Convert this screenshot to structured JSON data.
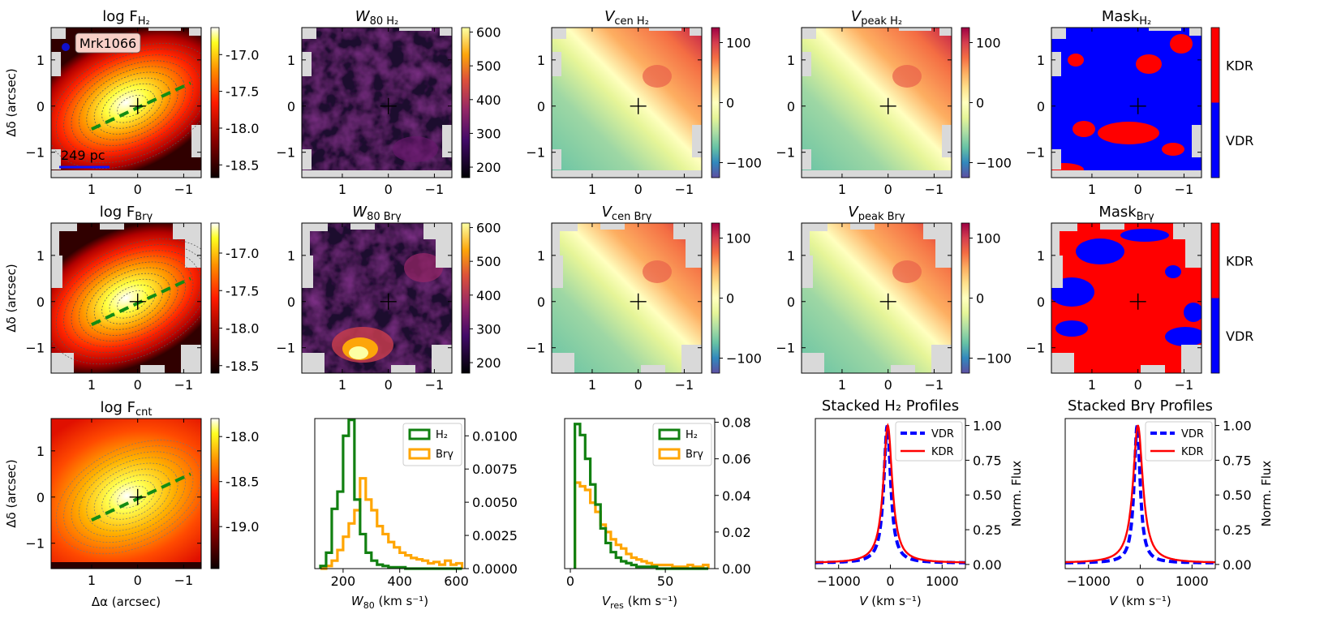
{
  "figure": {
    "colors": {
      "inferno": [
        "#000004",
        "#420a68",
        "#932667",
        "#dd513a",
        "#fca50a",
        "#fcffa4"
      ],
      "hot": [
        "#0b0000",
        "#8a0000",
        "#ff1a00",
        "#ff9000",
        "#ffff20",
        "#ffffff"
      ],
      "spectral": [
        "#5e4fa2",
        "#3288bd",
        "#66c2a5",
        "#abdda4",
        "#e6f598",
        "#ffffbf",
        "#fee08b",
        "#fdae61",
        "#f46d43",
        "#d53e4f",
        "#9e0142"
      ],
      "vdr": "#0000ff",
      "kdr": "#ff0000",
      "h2": "#118011",
      "brg": "#ffa500",
      "pa": "#148c14",
      "nodata": "#d9d9d9",
      "galaxy_dot": "#1010cc",
      "label_box": "#f8d0c8"
    },
    "annotations": {
      "galaxy": "Mrk1066",
      "scale_bar": "249 pc"
    },
    "axis_labels": {
      "dalpha": "Δα (arcsec)",
      "ddelta": "Δδ (arcsec)"
    },
    "map_ticks": {
      "x": [
        "1",
        "0",
        "−1"
      ],
      "y": [
        "1",
        "0",
        "−1"
      ]
    },
    "titles": {
      "f_h2": "log F",
      "f_h2_sub": "H₂",
      "w80_h2": "W",
      "w80_h2_sub": "80 H₂",
      "vcen_h2": "V",
      "vcen_h2_sub": "cen H₂",
      "vpeak_h2": "V",
      "vpeak_h2_sub": "peak H₂",
      "mask_h2": "Mask",
      "mask_h2_sub": "H₂",
      "f_brg": "log F",
      "f_brg_sub": "Brγ",
      "w80_brg": "W",
      "w80_brg_sub": "80 Brγ",
      "vcen_brg": "V",
      "vcen_brg_sub": "cen Brγ",
      "vpeak_brg": "V",
      "vpeak_brg_sub": "peak Brγ",
      "mask_brg": "Mask",
      "mask_brg_sub": "Brγ",
      "f_cnt": "log F",
      "f_cnt_sub": "cnt",
      "stack_h2": "Stacked H₂ Profiles",
      "stack_brg": "Stacked Brγ Profiles"
    },
    "colorbars": {
      "flux_line": [
        "-17.0",
        "-17.5",
        "-18.0",
        "-18.5"
      ],
      "flux_cnt": [
        "-18.0",
        "-18.5",
        "-19.0"
      ],
      "w80": [
        "600",
        "500",
        "400",
        "300",
        "200"
      ],
      "vel": [
        "100",
        "0",
        "−100"
      ],
      "mask": [
        "KDR",
        "VDR"
      ]
    }
  },
  "chart_data": [
    {
      "type": "bar",
      "id": "w80_hist",
      "xlabel": "W80 (km s⁻¹)",
      "xlabel_main": "W",
      "xlabel_sub": "80",
      "xlabel_unit": " (km s⁻¹)",
      "xlim": [
        100,
        630
      ],
      "ylim": [
        0,
        0.0113
      ],
      "xticks": [
        "200",
        "400",
        "600"
      ],
      "yticks": [
        "0.0000",
        "0.0025",
        "0.0050",
        "0.0075",
        "0.0100"
      ],
      "bin_edges": [
        120,
        140,
        160,
        180,
        200,
        220,
        240,
        260,
        280,
        300,
        320,
        340,
        360,
        380,
        400,
        420,
        440,
        460,
        480,
        500,
        520,
        540,
        560,
        580,
        600,
        620
      ],
      "series": [
        {
          "name": "H₂",
          "values": [
            0.0002,
            0.0012,
            0.0045,
            0.0058,
            0.01,
            0.0112,
            0.0052,
            0.0026,
            0.0012,
            0.0006,
            0.0003,
            0.0002,
            0.0001,
            0.0001,
            0.0001,
            0,
            0,
            0,
            0,
            0,
            0,
            0,
            0,
            0,
            0
          ]
        },
        {
          "name": "Brγ",
          "values": [
            0,
            0.0002,
            0.0006,
            0.0014,
            0.0024,
            0.0034,
            0.0044,
            0.0068,
            0.0052,
            0.0044,
            0.0032,
            0.0026,
            0.002,
            0.0016,
            0.0012,
            0.001,
            0.0008,
            0.0007,
            0.0006,
            0.0004,
            0.0005,
            0.0003,
            0.0006,
            0.0003,
            0.0004
          ]
        }
      ]
    },
    {
      "type": "bar",
      "id": "vres_hist",
      "xlabel": "Vres (km s⁻¹)",
      "xlabel_main": "V",
      "xlabel_sub": "res",
      "xlabel_unit": " (km s⁻¹)",
      "xlim": [
        -3,
        76
      ],
      "ylim": [
        0,
        0.082
      ],
      "xticks": [
        "0",
        "50"
      ],
      "xtick_values": [
        0,
        50
      ],
      "yticks": [
        "0.00",
        "0.02",
        "0.04",
        "0.06",
        "0.08"
      ],
      "bin_edges": [
        2.4,
        5.1,
        7.8,
        10.5,
        13.2,
        15.9,
        18.6,
        21.3,
        24,
        26.7,
        29.4,
        32.1,
        34.8,
        37.5,
        40.2,
        42.9,
        45.6,
        48.3,
        51,
        53.7,
        56.4,
        59.1,
        61.8,
        64.5,
        67.2,
        69.9,
        72.6
      ],
      "series": [
        {
          "name": "H₂",
          "values": [
            0.079,
            0.073,
            0.06,
            0.046,
            0.035,
            0.022,
            0.014,
            0.009,
            0.006,
            0.004,
            0.003,
            0.002,
            0.001,
            0.001,
            0.001,
            0.001,
            0,
            0,
            0,
            0,
            0,
            0,
            0,
            0,
            0,
            0
          ]
        },
        {
          "name": "Brγ",
          "values": [
            0.047,
            0.045,
            0.043,
            0.036,
            0.031,
            0.024,
            0.02,
            0.016,
            0.013,
            0.011,
            0.008,
            0.006,
            0.005,
            0.004,
            0.003,
            0.002,
            0.002,
            0.002,
            0.002,
            0.001,
            0.001,
            0.001,
            0.002,
            0.001,
            0.001,
            0.002
          ]
        }
      ]
    },
    {
      "type": "line",
      "id": "stack_h2",
      "title": "Stacked H₂ Profiles",
      "xlabel": "V (km s⁻¹)",
      "xlabel_main": "V",
      "xlabel_unit": " (km s⁻¹)",
      "ylabel": "Norm. Flux",
      "xlim": [
        -1450,
        1450
      ],
      "ylim": [
        -0.03,
        1.05
      ],
      "xticks": [
        "−1000",
        "0",
        "1000"
      ],
      "xtick_values": [
        -1000,
        0,
        1000
      ],
      "yticks": [
        "0.00",
        "0.25",
        "0.50",
        "0.75",
        "1.00"
      ],
      "ytick_values": [
        0,
        0.25,
        0.5,
        0.75,
        1.0
      ],
      "series": [
        {
          "name": "VDR",
          "center": -60,
          "width": 80,
          "base": 0.01,
          "style": "dashed"
        },
        {
          "name": "KDR",
          "center": -50,
          "width": 105,
          "base": 0.01,
          "style": "solid"
        }
      ]
    },
    {
      "type": "line",
      "id": "stack_brg",
      "title": "Stacked Brγ Profiles",
      "xlabel": "V (km s⁻¹)",
      "xlabel_main": "V",
      "xlabel_unit": " (km s⁻¹)",
      "ylabel": "Norm. Flux",
      "xlim": [
        -1450,
        1450
      ],
      "ylim": [
        -0.03,
        1.05
      ],
      "xticks": [
        "−1000",
        "0",
        "1000"
      ],
      "xtick_values": [
        -1000,
        0,
        1000
      ],
      "yticks": [
        "0.00",
        "0.25",
        "0.50",
        "0.75",
        "1.00"
      ],
      "ytick_values": [
        0,
        0.25,
        0.5,
        0.75,
        1.0
      ],
      "series": [
        {
          "name": "VDR",
          "center": -60,
          "width": 70,
          "base": 0.01,
          "style": "dashed"
        },
        {
          "name": "KDR",
          "center": -45,
          "width": 115,
          "base": 0.01,
          "style": "solid"
        }
      ]
    },
    {
      "type": "heatmap",
      "id": "maps",
      "xlim": [
        1.88,
        -1.38
      ],
      "ylim": [
        -1.55,
        1.7
      ],
      "xticks": [
        1,
        0,
        -1
      ],
      "yticks": [
        1,
        0,
        -1
      ],
      "pa_line": {
        "x0": 1.0,
        "y0": -0.5,
        "x1": -1.15,
        "y1": 0.5
      },
      "panels": [
        "log F H₂",
        "W80 H₂",
        "Vcen H₂",
        "Vpeak H₂",
        "Mask H₂",
        "log F Brγ",
        "W80 Brγ",
        "Vcen Brγ",
        "Vpeak Brγ",
        "Mask Brγ",
        "log F cnt"
      ]
    }
  ]
}
